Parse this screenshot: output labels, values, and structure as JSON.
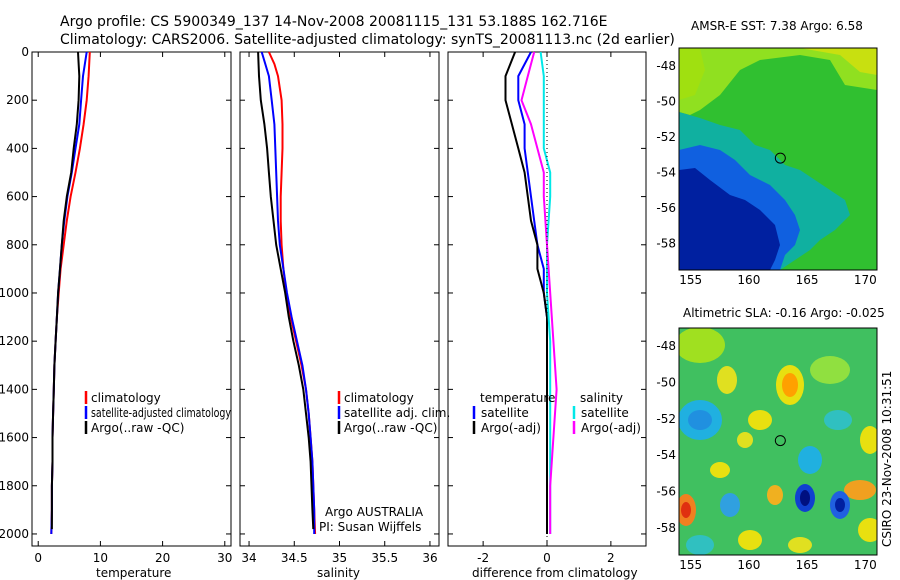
{
  "header": {
    "line1": "Argo profile: CS 5900349_137 14-Nov-2008 20081115_131 53.188S 162.716E",
    "line2": "Climatology: CARS2006. Satellite-adjusted climatology: synTS_20081113.nc (2d earlier)"
  },
  "credit": "CSIRO 23-Nov-2008 10:31:51",
  "colors": {
    "red": "#ff0000",
    "blue": "#0000ff",
    "black": "#000000",
    "cyan": "#00e8e8",
    "magenta": "#ff00ff"
  },
  "chart_data": [
    {
      "type": "line",
      "xlabel": "temperature",
      "ylabel": "",
      "xlim": [
        -1,
        31
      ],
      "ylim": [
        2050,
        0
      ],
      "xticks": [
        0,
        10,
        20,
        30
      ],
      "yticks": [
        0,
        200,
        400,
        600,
        800,
        1000,
        1200,
        1400,
        1600,
        1800,
        2000
      ],
      "legend": [
        "climatology",
        "satellite-adjusted climatology",
        "Argo(..raw -QC)"
      ],
      "series": [
        {
          "name": "climatology",
          "color": "red",
          "points": [
            [
              8.3,
              0
            ],
            [
              8.1,
              100
            ],
            [
              7.8,
              200
            ],
            [
              7.3,
              300
            ],
            [
              6.7,
              400
            ],
            [
              6.0,
              500
            ],
            [
              5.2,
              600
            ],
            [
              4.6,
              700
            ],
            [
              4.1,
              800
            ],
            [
              3.6,
              900
            ],
            [
              3.3,
              1000
            ],
            [
              3.0,
              1100
            ],
            [
              2.8,
              1200
            ],
            [
              2.6,
              1300
            ],
            [
              2.5,
              1400
            ],
            [
              2.4,
              1500
            ],
            [
              2.3,
              1600
            ],
            [
              2.3,
              1700
            ],
            [
              2.2,
              1800
            ],
            [
              2.2,
              1900
            ],
            [
              2.1,
              2000
            ]
          ]
        },
        {
          "name": "satellite-adjusted climatology",
          "color": "blue",
          "points": [
            [
              7.8,
              0
            ],
            [
              7.2,
              100
            ],
            [
              6.9,
              200
            ],
            [
              6.6,
              300
            ],
            [
              6.0,
              400
            ],
            [
              5.4,
              500
            ],
            [
              4.7,
              600
            ],
            [
              4.2,
              700
            ],
            [
              3.8,
              800
            ],
            [
              3.5,
              900
            ],
            [
              3.2,
              1000
            ],
            [
              3.0,
              1100
            ],
            [
              2.8,
              1200
            ],
            [
              2.6,
              1300
            ],
            [
              2.5,
              1400
            ],
            [
              2.4,
              1500
            ],
            [
              2.3,
              1600
            ],
            [
              2.3,
              1700
            ],
            [
              2.2,
              1800
            ],
            [
              2.2,
              1900
            ],
            [
              2.1,
              2000
            ]
          ]
        },
        {
          "name": "Argo(..raw -QC)",
          "color": "black",
          "points": [
            [
              6.4,
              0
            ],
            [
              6.6,
              100
            ],
            [
              6.5,
              200
            ],
            [
              6.2,
              300
            ],
            [
              5.7,
              400
            ],
            [
              5.3,
              500
            ],
            [
              4.6,
              600
            ],
            [
              4.1,
              700
            ],
            [
              3.8,
              800
            ],
            [
              3.5,
              900
            ],
            [
              3.2,
              1000
            ],
            [
              3.0,
              1100
            ],
            [
              2.8,
              1200
            ],
            [
              2.6,
              1300
            ],
            [
              2.5,
              1400
            ],
            [
              2.4,
              1500
            ],
            [
              2.3,
              1600
            ],
            [
              2.3,
              1700
            ],
            [
              2.2,
              1800
            ],
            [
              2.2,
              1900
            ],
            [
              2.2,
              1980
            ]
          ]
        }
      ]
    },
    {
      "type": "line",
      "xlabel": "salinity",
      "xlim": [
        33.9,
        36.1
      ],
      "ylim": [
        2050,
        0
      ],
      "xticks": [
        34,
        34.5,
        35,
        35.5,
        36
      ],
      "legend": [
        "climatology",
        "satellite adj. clim.",
        "Argo(..raw -QC)"
      ],
      "annotation": [
        "Argo AUSTRALIA",
        "PI: Susan Wijffels"
      ],
      "series": [
        {
          "name": "climatology",
          "color": "red",
          "points": [
            [
              34.22,
              0
            ],
            [
              34.28,
              50
            ],
            [
              34.32,
              100
            ],
            [
              34.34,
              150
            ],
            [
              34.36,
              200
            ],
            [
              34.37,
              300
            ],
            [
              34.37,
              400
            ],
            [
              34.36,
              500
            ],
            [
              34.35,
              600
            ],
            [
              34.35,
              700
            ],
            [
              34.36,
              800
            ],
            [
              34.38,
              900
            ],
            [
              34.41,
              1000
            ],
            [
              34.46,
              1100
            ],
            [
              34.52,
              1200
            ],
            [
              34.58,
              1300
            ],
            [
              34.63,
              1400
            ],
            [
              34.66,
              1500
            ],
            [
              34.68,
              1600
            ],
            [
              34.7,
              1700
            ],
            [
              34.71,
              1800
            ],
            [
              34.72,
              1900
            ],
            [
              34.73,
              2000
            ]
          ]
        },
        {
          "name": "satellite adj. clim.",
          "color": "blue",
          "points": [
            [
              34.14,
              0
            ],
            [
              34.18,
              50
            ],
            [
              34.22,
              100
            ],
            [
              34.25,
              200
            ],
            [
              34.28,
              300
            ],
            [
              34.29,
              400
            ],
            [
              34.3,
              500
            ],
            [
              34.31,
              600
            ],
            [
              34.32,
              700
            ],
            [
              34.34,
              800
            ],
            [
              34.38,
              900
            ],
            [
              34.42,
              1000
            ],
            [
              34.47,
              1100
            ],
            [
              34.53,
              1200
            ],
            [
              34.59,
              1300
            ],
            [
              34.63,
              1400
            ],
            [
              34.66,
              1500
            ],
            [
              34.68,
              1600
            ],
            [
              34.7,
              1700
            ],
            [
              34.71,
              1800
            ],
            [
              34.72,
              1900
            ],
            [
              34.72,
              2000
            ]
          ]
        },
        {
          "name": "Argo(..raw -QC)",
          "color": "black",
          "points": [
            [
              34.1,
              0
            ],
            [
              34.11,
              100
            ],
            [
              34.13,
              200
            ],
            [
              34.17,
              300
            ],
            [
              34.2,
              400
            ],
            [
              34.21,
              450
            ],
            [
              34.22,
              500
            ],
            [
              34.24,
              600
            ],
            [
              34.27,
              700
            ],
            [
              34.3,
              800
            ],
            [
              34.35,
              900
            ],
            [
              34.4,
              1000
            ],
            [
              34.44,
              1100
            ],
            [
              34.49,
              1200
            ],
            [
              34.55,
              1300
            ],
            [
              34.6,
              1400
            ],
            [
              34.63,
              1500
            ],
            [
              34.66,
              1600
            ],
            [
              34.68,
              1700
            ],
            [
              34.69,
              1800
            ],
            [
              34.7,
              1900
            ],
            [
              34.71,
              1980
            ]
          ]
        }
      ]
    },
    {
      "type": "line",
      "xlabel": "difference from climatology",
      "xlim": [
        -3.1,
        3.1
      ],
      "ylim": [
        2050,
        0
      ],
      "xticks": [
        -2,
        0,
        2
      ],
      "zero_line": true,
      "legend_left": {
        "title": "temperature",
        "items": [
          "satellite",
          "Argo(-adj)"
        ]
      },
      "legend_right": {
        "title": "salinity",
        "items": [
          "satellite",
          "Argo(-adj)"
        ]
      },
      "series": [
        {
          "name": "temperature satellite",
          "color": "blue",
          "points": [
            [
              -0.5,
              0
            ],
            [
              -0.9,
              100
            ],
            [
              -0.9,
              200
            ],
            [
              -0.7,
              300
            ],
            [
              -0.7,
              400
            ],
            [
              -0.6,
              500
            ],
            [
              -0.5,
              600
            ],
            [
              -0.4,
              700
            ],
            [
              -0.3,
              800
            ],
            [
              -0.1,
              900
            ],
            [
              -0.1,
              1000
            ],
            [
              0,
              1100
            ],
            [
              0,
              1200
            ],
            [
              0,
              1300
            ],
            [
              0,
              1400
            ],
            [
              0,
              1500
            ],
            [
              0,
              1600
            ],
            [
              0,
              1700
            ],
            [
              0,
              1800
            ],
            [
              0,
              1900
            ],
            [
              0,
              2000
            ]
          ]
        },
        {
          "name": "temperature Argo(-adj)",
          "color": "black",
          "points": [
            [
              -1.0,
              0
            ],
            [
              -1.3,
              100
            ],
            [
              -1.3,
              200
            ],
            [
              -1.1,
              300
            ],
            [
              -0.9,
              400
            ],
            [
              -0.7,
              500
            ],
            [
              -0.6,
              600
            ],
            [
              -0.5,
              700
            ],
            [
              -0.3,
              800
            ],
            [
              -0.3,
              900
            ],
            [
              -0.1,
              1000
            ],
            [
              0,
              1100
            ],
            [
              0,
              1200
            ],
            [
              0,
              1300
            ],
            [
              0,
              1400
            ],
            [
              0,
              1500
            ],
            [
              0,
              1600
            ],
            [
              0,
              1700
            ],
            [
              0,
              1800
            ],
            [
              0,
              1900
            ],
            [
              0,
              2000
            ]
          ]
        },
        {
          "name": "salinity satellite",
          "color": "cyan",
          "points": [
            [
              -0.2,
              0
            ],
            [
              -0.1,
              100
            ],
            [
              -0.1,
              200
            ],
            [
              -0.1,
              300
            ],
            [
              -0.1,
              400
            ],
            [
              0.1,
              500
            ],
            [
              0.1,
              600
            ],
            [
              0,
              800
            ],
            [
              0,
              1000
            ],
            [
              0.1,
              1200
            ],
            [
              0.1,
              1400
            ],
            [
              0.1,
              1600
            ],
            [
              0.1,
              1800
            ],
            [
              0.1,
              2000
            ]
          ]
        },
        {
          "name": "salinity Argo(-adj)",
          "color": "magenta",
          "points": [
            [
              -0.4,
              0
            ],
            [
              -0.6,
              100
            ],
            [
              -0.8,
              200
            ],
            [
              -0.5,
              300
            ],
            [
              -0.3,
              400
            ],
            [
              -0.1,
              500
            ],
            [
              -0.1,
              600
            ],
            [
              0,
              800
            ],
            [
              0.1,
              1000
            ],
            [
              0.2,
              1200
            ],
            [
              0.3,
              1400
            ],
            [
              0.2,
              1600
            ],
            [
              0.1,
              1800
            ],
            [
              0.1,
              2000
            ]
          ]
        }
      ]
    },
    {
      "type": "heatmap",
      "title": "AMSR-E SST: 7.38 Argo: 6.58",
      "xlim": [
        154,
        171
      ],
      "ylim": [
        -59.5,
        -47
      ],
      "xticks": [
        155,
        160,
        165,
        170
      ],
      "yticks": [
        -48,
        -50,
        -52,
        -54,
        -56,
        -58
      ],
      "marker": [
        162.7,
        -53.2
      ]
    },
    {
      "type": "heatmap",
      "title": "Altimetric SLA: -0.16 Argo: -0.025",
      "xlim": [
        154,
        171
      ],
      "ylim": [
        -59.5,
        -47
      ],
      "xticks": [
        155,
        160,
        165,
        170
      ],
      "yticks": [
        -48,
        -50,
        -52,
        -54,
        -56,
        -58
      ],
      "marker": [
        162.7,
        -53.2
      ]
    }
  ]
}
